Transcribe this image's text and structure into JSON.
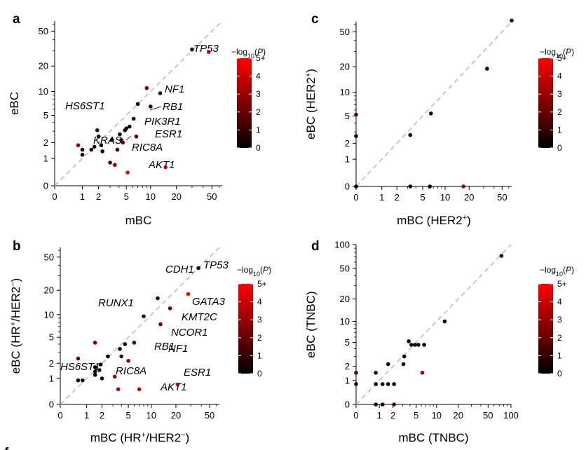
{
  "figure": {
    "colorbar": {
      "title": "−log10(P)",
      "ticks": [
        "0",
        "1",
        "2",
        "3",
        "4",
        "5+"
      ],
      "range": [
        0,
        5
      ],
      "colors": {
        "low": "#000000",
        "high": "#ff0000"
      }
    },
    "footer_label": "f"
  },
  "chart_data": [
    {
      "panel": "a",
      "type": "scatter",
      "xlabel": "mBC",
      "ylabel": "eBC",
      "scale": "log1p",
      "xticks": [
        "0",
        "1",
        "2",
        "5",
        "10",
        "20",
        "50"
      ],
      "yticks": [
        "0",
        "1",
        "2",
        "5",
        "10",
        "20",
        "50"
      ],
      "diagonal": true,
      "points": [
        {
          "x": 0.8,
          "y": 1.8,
          "p": 2.8
        },
        {
          "x": 1.0,
          "y": 1.5,
          "p": 0.6
        },
        {
          "x": 1.0,
          "y": 1.2,
          "p": 0.4
        },
        {
          "x": 1.5,
          "y": 1.5,
          "p": 0.3
        },
        {
          "x": 1.7,
          "y": 1.7,
          "p": 0.3
        },
        {
          "x": 1.9,
          "y": 3.1,
          "p": 1.2
        },
        {
          "x": 2.0,
          "y": 2.5,
          "p": 0.4
        },
        {
          "x": 2.2,
          "y": 1.8,
          "p": 0.3
        },
        {
          "x": 2.3,
          "y": 1.4,
          "p": 0.3
        },
        {
          "x": 3.0,
          "y": 0.8,
          "p": 1.5
        },
        {
          "x": 3.2,
          "y": 2.2,
          "p": 0.4
        },
        {
          "x": 3.5,
          "y": 0.7,
          "p": 3.0
        },
        {
          "x": 3.8,
          "y": 1.5,
          "p": 1.2
        },
        {
          "x": 4.1,
          "y": 2.7,
          "p": 0.4
        },
        {
          "x": 4.3,
          "y": 2.2,
          "p": 0.3
        },
        {
          "x": 4.5,
          "y": 2.0,
          "p": 2.2
        },
        {
          "x": 4.8,
          "y": 3.1,
          "p": 0.3
        },
        {
          "x": 5.0,
          "y": 3.3,
          "p": 0.3
        },
        {
          "x": 5.2,
          "y": 0.4,
          "p": 5.0
        },
        {
          "x": 5.5,
          "y": 3.5,
          "p": 0.3
        },
        {
          "x": 6.2,
          "y": 4.5,
          "p": 0.8
        },
        {
          "x": 6.7,
          "y": 2.5,
          "p": 1.8
        },
        {
          "x": 7.0,
          "y": 7.0,
          "p": 0.2
        },
        {
          "x": 9.0,
          "y": 11.0,
          "p": 2.2
        },
        {
          "x": 10.0,
          "y": 6.5,
          "p": 1.4
        },
        {
          "x": 13.0,
          "y": 9.5,
          "p": 1.0
        },
        {
          "x": 15.0,
          "y": 0.6,
          "p": 5.0
        },
        {
          "x": 30.0,
          "y": 31.0,
          "p": 0.5
        },
        {
          "x": 46.0,
          "y": 29.0,
          "p": 5.0
        }
      ],
      "labels": [
        {
          "text": "TP53",
          "x": 46.0,
          "y": 29.0
        },
        {
          "text": "NF1",
          "x": 6.2,
          "y": 4.5
        },
        {
          "text": "RB1",
          "x": 4.5,
          "y": 2.0
        },
        {
          "text": "PIK3R1",
          "x": 3.8,
          "y": 1.5
        },
        {
          "text": "HS6ST1",
          "x": 0.8,
          "y": 1.8
        },
        {
          "text": "KRAS",
          "x": 3.0,
          "y": 0.8
        },
        {
          "text": "RIC8A",
          "x": 3.5,
          "y": 0.7
        },
        {
          "text": "ESR1",
          "x": 15.0,
          "y": 0.6
        },
        {
          "text": "AKT1",
          "x": 5.2,
          "y": 0.4
        }
      ]
    },
    {
      "panel": "b",
      "type": "scatter",
      "xlabel": "mBC (HR+/HER2−)",
      "ylabel": "eBC (HR+/HER2−)",
      "scale": "log1p",
      "xticks": [
        "0",
        "1",
        "2",
        "5",
        "10",
        "20",
        "50"
      ],
      "yticks": [
        "0",
        "1",
        "2",
        "5",
        "10",
        "20",
        "50"
      ],
      "diagonal": true,
      "points": [
        {
          "x": 0.6,
          "y": 0.9,
          "p": 0.2
        },
        {
          "x": 0.8,
          "y": 0.9,
          "p": 0.2
        },
        {
          "x": 0.6,
          "y": 2.4,
          "p": 1.6
        },
        {
          "x": 1.5,
          "y": 4.2,
          "p": 2.4
        },
        {
          "x": 1.5,
          "y": 1.7,
          "p": 0.3
        },
        {
          "x": 1.5,
          "y": 1.4,
          "p": 0.3
        },
        {
          "x": 1.5,
          "y": 1.2,
          "p": 0.3
        },
        {
          "x": 1.8,
          "y": 1.5,
          "p": 0.3
        },
        {
          "x": 1.9,
          "y": 1.9,
          "p": 0.3
        },
        {
          "x": 2.0,
          "y": 1.0,
          "p": 1.0
        },
        {
          "x": 2.5,
          "y": 2.6,
          "p": 0.3
        },
        {
          "x": 3.2,
          "y": 1.1,
          "p": 3.0
        },
        {
          "x": 3.6,
          "y": 0.5,
          "p": 3.5
        },
        {
          "x": 3.8,
          "y": 3.4,
          "p": 0.4
        },
        {
          "x": 4.0,
          "y": 2.6,
          "p": 1.5
        },
        {
          "x": 4.5,
          "y": 4.0,
          "p": 0.4
        },
        {
          "x": 5.0,
          "y": 2.2,
          "p": 2.8
        },
        {
          "x": 6.0,
          "y": 4.2,
          "p": 1.2
        },
        {
          "x": 7.0,
          "y": 0.5,
          "p": 4.0
        },
        {
          "x": 8.0,
          "y": 9.5,
          "p": 0.5
        },
        {
          "x": 12.0,
          "y": 16.0,
          "p": 1.0
        },
        {
          "x": 13.0,
          "y": 7.5,
          "p": 2.2
        },
        {
          "x": 17.0,
          "y": 12.0,
          "p": 2.4
        },
        {
          "x": 21.0,
          "y": 0.7,
          "p": 5.0
        },
        {
          "x": 28.0,
          "y": 18.0,
          "p": 5.0
        },
        {
          "x": 37.0,
          "y": 37.0,
          "p": 0.5
        }
      ],
      "labels": [
        {
          "text": "TP53",
          "x": 28.0,
          "y": 18.0
        },
        {
          "text": "CDH1",
          "x": 12.0,
          "y": 16.0
        },
        {
          "text": "GATA3",
          "x": 17.0,
          "y": 12.0
        },
        {
          "text": "KMT2C",
          "x": 13.0,
          "y": 7.5
        },
        {
          "text": "RUNX1",
          "x": 1.5,
          "y": 4.2
        },
        {
          "text": "NCOR1",
          "x": 6.0,
          "y": 4.2
        },
        {
          "text": "NF1",
          "x": 5.0,
          "y": 2.2
        },
        {
          "text": "HS6ST1",
          "x": 0.6,
          "y": 2.4
        },
        {
          "text": "RB1",
          "x": 3.2,
          "y": 1.1
        },
        {
          "text": "ESR1",
          "x": 21.0,
          "y": 0.7
        },
        {
          "text": "RIC8A",
          "x": 3.6,
          "y": 0.5
        },
        {
          "text": "AKT1",
          "x": 7.0,
          "y": 0.5
        }
      ]
    },
    {
      "panel": "c",
      "type": "scatter",
      "xlabel": "mBC (HER2+)",
      "ylabel": "eBC (HER2+)",
      "scale": "log1p",
      "xticks": [
        "0",
        "1",
        "2",
        "5",
        "10",
        "20",
        "50"
      ],
      "yticks": [
        "0",
        "1",
        "2",
        "5",
        "10",
        "20",
        "50"
      ],
      "diagonal": true,
      "points": [
        {
          "x": 0.0,
          "y": 0.0,
          "p": 0.2
        },
        {
          "x": 0.0,
          "y": 5.2,
          "p": 1.4
        },
        {
          "x": 0.0,
          "y": 2.6,
          "p": 0.3
        },
        {
          "x": 3.3,
          "y": 2.7,
          "p": 0.3
        },
        {
          "x": 3.3,
          "y": 0.0,
          "p": 0.6
        },
        {
          "x": 6.5,
          "y": 5.4,
          "p": 0.3
        },
        {
          "x": 6.3,
          "y": 0.0,
          "p": 0.5
        },
        {
          "x": 17.0,
          "y": 0.0,
          "p": 3.2
        },
        {
          "x": 33.0,
          "y": 19.0,
          "p": 0.5
        },
        {
          "x": 65.0,
          "y": 67.0,
          "p": 0.3
        }
      ],
      "labels": []
    },
    {
      "panel": "d",
      "type": "scatter",
      "xlabel": "mBC (TNBC)",
      "ylabel": "eBC (TNBC)",
      "scale": "log1p",
      "xticks": [
        "0",
        "1",
        "2",
        "5",
        "10",
        "20",
        "50",
        "100"
      ],
      "yticks": [
        "0",
        "1",
        "2",
        "5",
        "10",
        "20",
        "50",
        "100"
      ],
      "diagonal": true,
      "points": [
        {
          "x": 0.0,
          "y": 1.5,
          "p": 1.6
        },
        {
          "x": 0.0,
          "y": 0.8,
          "p": 0.5
        },
        {
          "x": 0.8,
          "y": 1.5,
          "p": 0.4
        },
        {
          "x": 0.8,
          "y": 0.8,
          "p": 0.3
        },
        {
          "x": 0.8,
          "y": 0.0,
          "p": 0.3
        },
        {
          "x": 1.2,
          "y": 0.8,
          "p": 0.3
        },
        {
          "x": 1.2,
          "y": 0.0,
          "p": 0.3
        },
        {
          "x": 1.6,
          "y": 0.8,
          "p": 0.3
        },
        {
          "x": 1.6,
          "y": 2.2,
          "p": 0.4
        },
        {
          "x": 2.1,
          "y": 0.8,
          "p": 0.3
        },
        {
          "x": 2.1,
          "y": 0.0,
          "p": 1.1
        },
        {
          "x": 3.1,
          "y": 2.2,
          "p": 0.5
        },
        {
          "x": 3.2,
          "y": 3.0,
          "p": 0.3
        },
        {
          "x": 3.8,
          "y": 5.2,
          "p": 0.3
        },
        {
          "x": 4.2,
          "y": 4.6,
          "p": 0.3
        },
        {
          "x": 4.8,
          "y": 4.6,
          "p": 0.3
        },
        {
          "x": 5.4,
          "y": 4.6,
          "p": 0.3
        },
        {
          "x": 6.2,
          "y": 1.5,
          "p": 3.0
        },
        {
          "x": 6.6,
          "y": 4.6,
          "p": 0.6
        },
        {
          "x": 13.0,
          "y": 10.0,
          "p": 0.2
        },
        {
          "x": 75.0,
          "y": 72.0,
          "p": 1.0
        }
      ],
      "labels": []
    }
  ]
}
